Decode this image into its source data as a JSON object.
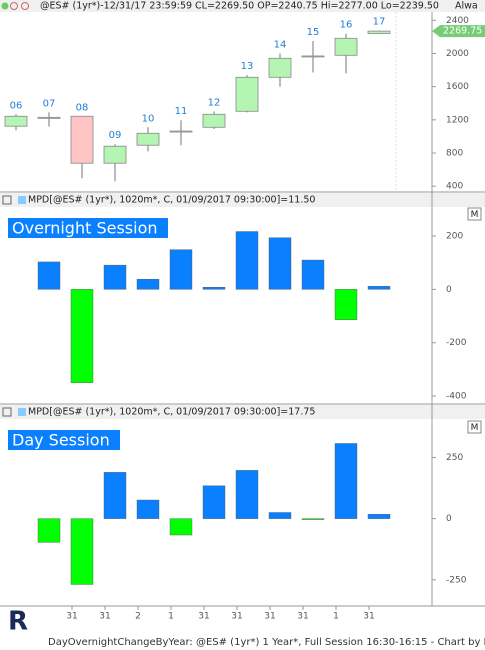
{
  "chart_data": [
    {
      "type": "candlestick",
      "header": "@ES# (1yr*)-12/31/17 23:59:59 CL=2269.50 OP=2240.75 Hi=2277.00 Lo=2239.50",
      "header_right": "Alwa",
      "categories": [
        "06",
        "07",
        "08",
        "09",
        "10",
        "11",
        "12",
        "13",
        "14",
        "15",
        "16",
        "17"
      ],
      "open": [
        1123,
        1225,
        1243,
        677,
        894,
        1060,
        1110,
        1303,
        1713,
        1965,
        1978,
        2240.75
      ],
      "high": [
        1267,
        1290,
        1243,
        906,
        1110,
        1195,
        1300,
        1740,
        2000,
        2150,
        2240,
        2277
      ],
      "low": [
        1075,
        1120,
        496,
        460,
        820,
        894,
        1090,
        1290,
        1600,
        1770,
        1760,
        2239.5
      ],
      "close": [
        1243,
        1230,
        677,
        882,
        1038,
        1065,
        1267,
        1713,
        1942,
        1970,
        2183,
        2269.5
      ],
      "up_color": "#b4f5b4",
      "down_color": "#ffc4c4",
      "label_color": "#1e7fd6",
      "price_tag": 2269.75,
      "ylim": [
        330,
        2500
      ],
      "yticks": [
        400,
        800,
        1200,
        1600,
        2000,
        2400
      ]
    },
    {
      "type": "bar",
      "header": "MPD[@ES# (1yr*), 1020m*, C, 01/09/2017 09:30:00]=11.50",
      "title": "Overnight Session",
      "values": [
        103,
        -350,
        91,
        38,
        149,
        8,
        217,
        194,
        110,
        -114,
        11.5
      ],
      "color": "#0a80ff",
      "negative_color": "#00ff00",
      "ylim": [
        -430,
        309
      ],
      "yticks": [
        200,
        0,
        -200,
        -400
      ]
    },
    {
      "type": "bar",
      "header": "MPD[@ES# (1yr*), 1020m*, C, 01/09/2017 09:30:00]=17.75",
      "title": "Day Session",
      "values": [
        -97,
        -269,
        189,
        76,
        -67,
        134,
        197,
        25,
        -2,
        307,
        17.75
      ],
      "color": "#0a80ff",
      "negative_color": "#00ff00",
      "ylim": [
        -357,
        407
      ],
      "yticks": [
        250,
        0,
        -250
      ]
    }
  ],
  "x_axis": [
    "31",
    "31",
    "2",
    "1",
    "31",
    "31",
    "31",
    "31",
    "1",
    "31"
  ],
  "button": "M",
  "footer": "DayOvernightChangeByYear: @ES# (1yr*) 1 Year*, Full Session 16:30-16:15 - Chart by In"
}
